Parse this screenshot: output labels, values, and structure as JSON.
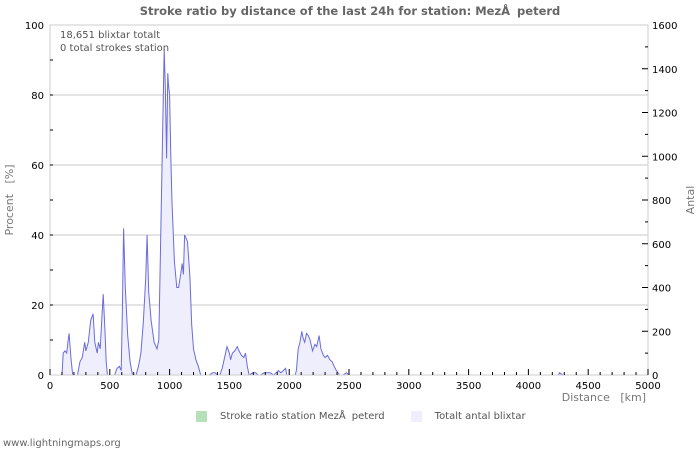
{
  "title": "Stroke ratio by distance of the last 24h for station: MezÅpeterd",
  "info": {
    "line1": "18,651 blixtar totalt",
    "line2": "0 total strokes station"
  },
  "legend": [
    {
      "label": "Stroke ratio station MezÅpeterd",
      "color": "#b8e0b8"
    },
    {
      "label": "Totalt antal blixtar",
      "color": "#eeeefc"
    }
  ],
  "footer": "www.lightningmaps.org",
  "colors": {
    "line": "#6b6bdc",
    "fill": "#eeeefc",
    "grid": "#c8c8c8",
    "frame": "#cccccc"
  },
  "chart_data": {
    "type": "area",
    "title": "Stroke ratio by distance of the last 24h for station: MezÅpeterd",
    "xlabel": "Distance   [km]",
    "ylabel_left": "Procent   [%]",
    "ylabel_right": "Antal",
    "xlim": [
      0,
      5000
    ],
    "ylim_left": [
      0,
      100
    ],
    "ylim_right": [
      0,
      1600
    ],
    "x_ticks": [
      "0",
      "500",
      "1000",
      "1500",
      "2000",
      "2500",
      "3000",
      "3500",
      "4000",
      "4500",
      "5000"
    ],
    "y_left_ticks": [
      "0",
      "20",
      "40",
      "60",
      "80",
      "100"
    ],
    "y_right_ticks": [
      "0",
      "200",
      "400",
      "600",
      "800",
      "1000",
      "1200",
      "1400",
      "1600"
    ],
    "grid": true,
    "legend_position": "bottom",
    "series": [
      {
        "name": "Stroke ratio station MezÅpeterd",
        "axis": "left",
        "values": "all 0"
      },
      {
        "name": "Totalt antal blixtar",
        "axis": "right",
        "points": [
          [
            100,
            0
          ],
          [
            110,
            100
          ],
          [
            125,
            110
          ],
          [
            140,
            100
          ],
          [
            150,
            150
          ],
          [
            160,
            190
          ],
          [
            175,
            80
          ],
          [
            190,
            0
          ],
          [
            230,
            0
          ],
          [
            250,
            60
          ],
          [
            270,
            80
          ],
          [
            290,
            150
          ],
          [
            300,
            110
          ],
          [
            320,
            150
          ],
          [
            340,
            250
          ],
          [
            360,
            280
          ],
          [
            375,
            150
          ],
          [
            395,
            100
          ],
          [
            405,
            150
          ],
          [
            420,
            120
          ],
          [
            435,
            270
          ],
          [
            445,
            370
          ],
          [
            460,
            200
          ],
          [
            470,
            60
          ],
          [
            480,
            0
          ],
          [
            540,
            0
          ],
          [
            560,
            30
          ],
          [
            580,
            40
          ],
          [
            595,
            20
          ],
          [
            605,
            300
          ],
          [
            615,
            670
          ],
          [
            630,
            400
          ],
          [
            650,
            180
          ],
          [
            670,
            60
          ],
          [
            690,
            0
          ],
          [
            720,
            0
          ],
          [
            740,
            40
          ],
          [
            760,
            100
          ],
          [
            780,
            240
          ],
          [
            800,
            440
          ],
          [
            812,
            640
          ],
          [
            825,
            380
          ],
          [
            845,
            250
          ],
          [
            870,
            150
          ],
          [
            895,
            120
          ],
          [
            910,
            160
          ],
          [
            925,
            600
          ],
          [
            945,
            1200
          ],
          [
            955,
            1490
          ],
          [
            965,
            1300
          ],
          [
            975,
            990
          ],
          [
            985,
            1380
          ],
          [
            990,
            1330
          ],
          [
            1000,
            1280
          ],
          [
            1010,
            1000
          ],
          [
            1020,
            790
          ],
          [
            1040,
            520
          ],
          [
            1060,
            400
          ],
          [
            1075,
            400
          ],
          [
            1095,
            470
          ],
          [
            1105,
            510
          ],
          [
            1115,
            460
          ],
          [
            1125,
            640
          ],
          [
            1135,
            630
          ],
          [
            1150,
            610
          ],
          [
            1170,
            450
          ],
          [
            1185,
            230
          ],
          [
            1200,
            120
          ],
          [
            1220,
            70
          ],
          [
            1240,
            40
          ],
          [
            1260,
            0
          ],
          [
            1300,
            0
          ],
          [
            1330,
            0
          ],
          [
            1360,
            10
          ],
          [
            1380,
            10
          ],
          [
            1400,
            0
          ],
          [
            1420,
            0
          ],
          [
            1440,
            30
          ],
          [
            1460,
            80
          ],
          [
            1480,
            130
          ],
          [
            1500,
            100
          ],
          [
            1510,
            70
          ],
          [
            1525,
            100
          ],
          [
            1545,
            110
          ],
          [
            1565,
            130
          ],
          [
            1580,
            110
          ],
          [
            1600,
            90
          ],
          [
            1620,
            80
          ],
          [
            1635,
            100
          ],
          [
            1650,
            40
          ],
          [
            1665,
            0
          ],
          [
            1700,
            10
          ],
          [
            1720,
            10
          ],
          [
            1740,
            0
          ],
          [
            1760,
            0
          ],
          [
            1790,
            10
          ],
          [
            1810,
            10
          ],
          [
            1840,
            10
          ],
          [
            1870,
            0
          ],
          [
            1890,
            10
          ],
          [
            1910,
            20
          ],
          [
            1930,
            10
          ],
          [
            1950,
            20
          ],
          [
            1970,
            30
          ],
          [
            1980,
            0
          ],
          [
            2050,
            0
          ],
          [
            2060,
            20
          ],
          [
            2075,
            120
          ],
          [
            2090,
            150
          ],
          [
            2105,
            200
          ],
          [
            2115,
            170
          ],
          [
            2130,
            150
          ],
          [
            2145,
            190
          ],
          [
            2160,
            180
          ],
          [
            2175,
            160
          ],
          [
            2195,
            110
          ],
          [
            2215,
            140
          ],
          [
            2230,
            130
          ],
          [
            2250,
            180
          ],
          [
            2265,
            120
          ],
          [
            2285,
            90
          ],
          [
            2300,
            80
          ],
          [
            2320,
            90
          ],
          [
            2340,
            70
          ],
          [
            2360,
            60
          ],
          [
            2375,
            40
          ],
          [
            2395,
            20
          ],
          [
            2420,
            0
          ],
          [
            2450,
            0
          ],
          [
            2480,
            10
          ],
          [
            2500,
            0
          ],
          [
            4250,
            0
          ],
          [
            4260,
            10
          ],
          [
            4290,
            0
          ],
          [
            5000,
            0
          ]
        ]
      }
    ]
  }
}
